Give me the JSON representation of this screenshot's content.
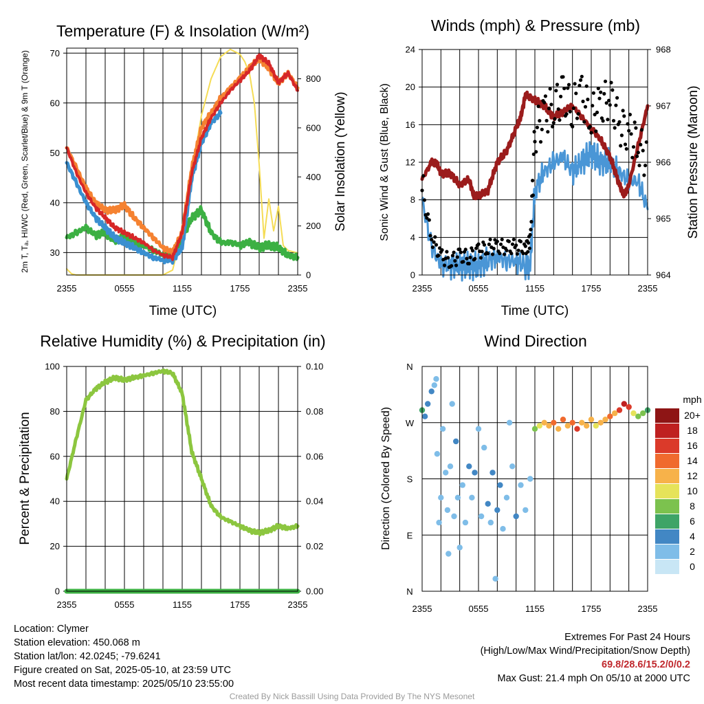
{
  "panels": {
    "temperature": {
      "title": "Temperature (F) & Insolation (W/m²)",
      "ylabel_left": "2m T, Tₐ, HI/WC (Red, Green, Scarlet/Blue) & 9m T (Orange)",
      "ylabel_right": "Solar Insolation (Yellow)",
      "xlabel": "Time (UTC)"
    },
    "winds": {
      "title": "Winds (mph) & Pressure (mb)",
      "ylabel_left": "Sonic Wind & Gust (Blue, Black)",
      "ylabel_right": "Station Pressure (Maroon)",
      "xlabel": "Time (UTC)"
    },
    "humidity": {
      "title": "Relative Humidity (%) & Precipitation (in)",
      "ylabel_left": "Percent & Precipitation"
    },
    "direction": {
      "title": "Wind Direction",
      "ylabel_left": "Direction (Colored By Speed)",
      "colorbar_unit": "mph",
      "colorbar_labels": [
        "20+",
        "18",
        "16",
        "14",
        "12",
        "10",
        "8",
        "6",
        "4",
        "2",
        "0"
      ]
    }
  },
  "info": {
    "location": "Location: Clymer",
    "elevation": "Station elevation: 450.068 m",
    "latlon": "Station lat/lon: 42.0245; -79.6241",
    "created": "Figure created on Sat, 2025-05-10, at 23:59 UTC",
    "recent": "Most recent data timestamp: 2025/05/10 23:55:00",
    "extremes_title": "Extremes For Past 24 Hours",
    "extremes_fields": "(High/Low/Max Wind/Precipitation/Snow Depth)",
    "extremes_values": "69.8/28.6/15.2/0/0.2",
    "max_gust": "Max Gust: 21.4 mph On 05/10 at 2000 UTC"
  },
  "credit": "Created By Nick Bassill Using Data Provided By The NYS Mesonet",
  "colors": {
    "temp": "#d62728",
    "temp9m": "#f58231",
    "dewpoint": "#3cb043",
    "heatindex_wc": "#c0282d",
    "windchill_blue": "#3a8fd0",
    "insolation": "#f5dc55",
    "wind": "#4a96d6",
    "gust": "#000000",
    "pressure": "#9b1c1c",
    "rh": "#8cc63f",
    "precip": "#3cb043"
  },
  "chart_data": [
    {
      "type": "line",
      "title": "Temperature (F) & Insolation (W/m²)",
      "xlabel": "Time (UTC)",
      "ylabel": "2m T, Tₐ, HI/WC (Red, Green, Scarlet/Blue) & 9m T (Orange)",
      "ylabel_right": "Solar Insolation (Yellow)",
      "x_ticks": [
        "2355",
        "0555",
        "1155",
        "1755",
        "2355"
      ],
      "x_hours": [
        0,
        2,
        4,
        6,
        8,
        10,
        12,
        14,
        16,
        18,
        20,
        22,
        24
      ],
      "ylim": [
        25.5,
        71
      ],
      "y_ticks": [
        30,
        40,
        50,
        60,
        70
      ],
      "ylim_right": [
        0,
        925
      ],
      "y_ticks_right": [
        0,
        200,
        400,
        600,
        800
      ],
      "series": [
        {
          "name": "2m T",
          "axis": "left",
          "color": "#d62728",
          "x": [
            0,
            1,
            2,
            3,
            4,
            5,
            6,
            7,
            8,
            9,
            10,
            11,
            12,
            13,
            14,
            15,
            16,
            17,
            18,
            19,
            20,
            21,
            22,
            23,
            24
          ],
          "values": [
            51,
            46,
            42,
            39,
            37,
            35,
            34,
            33,
            32,
            30.5,
            29.5,
            29,
            34,
            46,
            53,
            57,
            60,
            62.5,
            64.5,
            66.5,
            69.5,
            68,
            64,
            66,
            62.5
          ]
        },
        {
          "name": "9m T",
          "axis": "left",
          "color": "#f58231",
          "x": [
            0,
            1,
            2,
            3,
            4,
            5,
            6,
            7,
            8,
            9,
            10,
            11,
            12,
            13,
            14,
            15,
            16,
            17,
            18,
            19,
            20,
            21,
            22,
            23,
            24
          ],
          "values": [
            51,
            47,
            43,
            40,
            38.5,
            38.5,
            39.5,
            37,
            35,
            33,
            31,
            30,
            34,
            47,
            55,
            58,
            61,
            63,
            65,
            67,
            69,
            67,
            64,
            66,
            63
          ]
        },
        {
          "name": "Tₐ",
          "axis": "left",
          "color": "#3cb043",
          "x": [
            0,
            1,
            2,
            3,
            4,
            5,
            6,
            7,
            8,
            9,
            10,
            11,
            12,
            13,
            14,
            15,
            16,
            17,
            18,
            19,
            20,
            21,
            22,
            23,
            24
          ],
          "values": [
            33,
            34,
            35,
            33.5,
            34,
            32.5,
            33,
            32,
            31.5,
            30.5,
            29.5,
            29,
            33,
            37,
            38.5,
            34,
            32,
            32,
            31.5,
            32,
            31,
            31.5,
            31,
            29.5,
            29
          ]
        },
        {
          "name": "HI/WC",
          "axis": "left",
          "color": "#3a8fd0",
          "x": [
            0,
            1,
            2,
            3,
            4,
            5,
            6,
            7,
            8,
            9,
            10,
            11,
            12,
            13,
            14,
            15,
            16
          ],
          "values": [
            48,
            44,
            40,
            37,
            35,
            33,
            32,
            31,
            30,
            29,
            28.5,
            28.5,
            31,
            45,
            52,
            56,
            58
          ]
        },
        {
          "name": "Solar Insolation",
          "axis": "right",
          "color": "#f5dc55",
          "x": [
            0,
            0.5,
            1,
            2,
            4,
            6,
            8,
            10,
            11,
            12,
            13,
            14,
            15,
            16,
            17,
            18,
            18.5,
            19,
            19.5,
            20,
            20.5,
            21,
            21.5,
            22,
            22.5,
            23,
            24
          ],
          "values": [
            25,
            5,
            0,
            0,
            0,
            0,
            0,
            0,
            20,
            170,
            420,
            650,
            800,
            890,
            920,
            900,
            870,
            820,
            700,
            450,
            150,
            310,
            180,
            280,
            120,
            100,
            90
          ]
        }
      ]
    },
    {
      "type": "line",
      "title": "Winds (mph) & Pressure (mb)",
      "xlabel": "Time (UTC)",
      "ylabel": "Sonic Wind & Gust (Blue, Black)",
      "ylabel_right": "Station Pressure (Maroon)",
      "x_ticks": [
        "2355",
        "0555",
        "1155",
        "1755",
        "2355"
      ],
      "ylim": [
        0,
        24
      ],
      "y_ticks": [
        0,
        4,
        8,
        12,
        16,
        20,
        24
      ],
      "ylim_right": [
        964,
        968
      ],
      "y_ticks_right": [
        964,
        965,
        966,
        967,
        968
      ],
      "series": [
        {
          "name": "Sonic Wind",
          "axis": "left",
          "color": "#4a96d6",
          "x": [
            0,
            1,
            2,
            3,
            4,
            5,
            6,
            7,
            8,
            9,
            10,
            11,
            11.5,
            12,
            13,
            14,
            15,
            16,
            17,
            18,
            19,
            20,
            21,
            22,
            23,
            24
          ],
          "values": [
            8,
            3,
            1,
            1,
            1,
            1,
            1,
            1.5,
            2,
            1.5,
            1.5,
            1,
            1,
            9,
            11,
            12,
            12.5,
            11,
            12,
            13,
            12,
            12,
            11,
            10,
            10,
            7
          ]
        },
        {
          "name": "Gust",
          "axis": "left",
          "color": "#000000",
          "x": [
            0,
            1,
            2,
            3,
            4,
            5,
            6,
            7,
            8,
            9,
            10,
            11,
            11.5,
            12,
            13,
            14,
            15,
            16,
            17,
            18,
            19,
            20,
            21,
            22,
            23,
            24
          ],
          "values": [
            9,
            4,
            2,
            1.5,
            2,
            2,
            2.5,
            3,
            3,
            3,
            3,
            3,
            3.5,
            15,
            17,
            18,
            19,
            18,
            19,
            17,
            18,
            19,
            16,
            15,
            14,
            12
          ]
        },
        {
          "name": "Station Pressure",
          "axis": "right",
          "color": "#9b1c1c",
          "x": [
            0,
            1,
            1.5,
            2,
            3,
            4,
            5,
            5.5,
            6,
            7,
            8,
            9,
            10,
            10.5,
            11,
            12,
            13,
            14,
            15,
            16,
            17,
            18,
            19,
            20,
            21,
            21.5,
            22,
            23,
            24
          ],
          "values": [
            965.7,
            966,
            966,
            965.8,
            965.8,
            965.6,
            965.7,
            965.4,
            965.4,
            965.5,
            966,
            966.2,
            966.6,
            966.8,
            967.2,
            967.1,
            967.0,
            966.8,
            966.9,
            967,
            966.8,
            966.6,
            966.4,
            966.1,
            965.6,
            965.4,
            965.6,
            966.3,
            967
          ]
        }
      ]
    },
    {
      "type": "line",
      "title": "Relative Humidity (%) & Precipitation (in)",
      "ylabel": "Percent & Precipitation",
      "x_ticks": [
        "2355",
        "0555",
        "1155",
        "1755",
        "2355"
      ],
      "ylim": [
        0,
        100
      ],
      "y_ticks": [
        0,
        20,
        40,
        60,
        80,
        100
      ],
      "ylim_right": [
        0,
        0.1
      ],
      "y_ticks_right": [
        "0.00",
        "0.02",
        "0.04",
        "0.06",
        "0.08",
        "0.10"
      ],
      "series": [
        {
          "name": "RH",
          "axis": "left",
          "color": "#8cc63f",
          "x": [
            0,
            1,
            2,
            3,
            4,
            5,
            6,
            7,
            8,
            9,
            10,
            11,
            12,
            13,
            14,
            15,
            16,
            17,
            18,
            19,
            20,
            21,
            22,
            23,
            24
          ],
          "values": [
            50,
            68,
            85,
            90,
            93,
            95,
            94,
            95,
            96,
            97,
            98,
            97,
            88,
            62,
            50,
            38,
            33,
            31,
            29,
            27,
            26,
            27,
            29,
            28,
            29
          ]
        },
        {
          "name": "Precipitation",
          "axis": "right",
          "color": "#3cb043",
          "x": [
            0,
            24
          ],
          "values": [
            0,
            0
          ]
        }
      ]
    },
    {
      "type": "scatter",
      "title": "Wind Direction",
      "ylabel": "Direction (Colored By Speed)",
      "x_ticks": [
        "2355",
        "0555",
        "1155",
        "1755",
        "2355"
      ],
      "y_ticks": [
        "N",
        "E",
        "S",
        "W",
        "N"
      ],
      "ylim": [
        0,
        360
      ],
      "colorbar": {
        "unit": "mph",
        "levels": [
          "0",
          "2",
          "4",
          "6",
          "8",
          "10",
          "12",
          "14",
          "16",
          "18",
          "20+"
        ],
        "colors": [
          "#c8e6f5",
          "#7fbde8",
          "#4287c4",
          "#3ea467",
          "#7cc24e",
          "#e6e35a",
          "#f7b24a",
          "#f06a2e",
          "#db3a2a",
          "#bf2020",
          "#8e1515"
        ]
      },
      "points": [
        [
          0,
          290,
          5
        ],
        [
          0.3,
          280,
          4
        ],
        [
          0.6,
          300,
          4
        ],
        [
          1,
          320,
          3
        ],
        [
          1.3,
          330,
          2
        ],
        [
          1.5,
          340,
          1
        ],
        [
          1.6,
          220,
          1
        ],
        [
          1.8,
          110,
          1
        ],
        [
          2,
          150,
          1
        ],
        [
          2.2,
          260,
          1
        ],
        [
          2.5,
          190,
          1
        ],
        [
          2.7,
          130,
          2
        ],
        [
          2.8,
          60,
          1
        ],
        [
          3,
          200,
          2
        ],
        [
          3.2,
          300,
          1
        ],
        [
          3.4,
          120,
          1
        ],
        [
          3.6,
          240,
          3
        ],
        [
          3.8,
          150,
          1
        ],
        [
          4,
          70,
          1
        ],
        [
          4.3,
          170,
          2
        ],
        [
          4.6,
          110,
          1
        ],
        [
          5,
          200,
          3
        ],
        [
          5.3,
          150,
          2
        ],
        [
          5.6,
          190,
          3
        ],
        [
          6,
          260,
          1
        ],
        [
          6.3,
          120,
          2
        ],
        [
          6.6,
          230,
          1
        ],
        [
          7,
          140,
          3
        ],
        [
          7.3,
          110,
          1
        ],
        [
          7.5,
          190,
          3
        ],
        [
          7.8,
          20,
          1
        ],
        [
          8,
          130,
          3
        ],
        [
          8.3,
          170,
          3
        ],
        [
          8.6,
          100,
          2
        ],
        [
          9,
          150,
          2
        ],
        [
          9.3,
          270,
          1
        ],
        [
          9.6,
          200,
          2
        ],
        [
          10,
          120,
          3
        ],
        [
          10.5,
          170,
          2
        ],
        [
          11,
          130,
          2
        ],
        [
          11.5,
          180,
          2
        ],
        [
          12,
          260,
          8
        ],
        [
          12.5,
          265,
          9
        ],
        [
          13,
          270,
          11
        ],
        [
          13.5,
          265,
          12
        ],
        [
          14,
          270,
          13
        ],
        [
          14.5,
          260,
          12
        ],
        [
          15,
          275,
          14
        ],
        [
          15.5,
          265,
          12
        ],
        [
          16,
          270,
          13
        ],
        [
          16.5,
          260,
          15
        ],
        [
          17,
          270,
          12
        ],
        [
          17.5,
          265,
          11
        ],
        [
          18,
          275,
          12
        ],
        [
          18.5,
          265,
          10
        ],
        [
          19,
          270,
          11
        ],
        [
          19.5,
          275,
          12
        ],
        [
          20,
          280,
          13
        ],
        [
          20.5,
          285,
          11
        ],
        [
          21,
          290,
          15
        ],
        [
          21.5,
          300,
          17
        ],
        [
          22,
          295,
          16
        ],
        [
          22.5,
          285,
          10
        ],
        [
          23,
          280,
          7
        ],
        [
          23.5,
          285,
          8
        ],
        [
          24,
          290,
          6
        ]
      ]
    }
  ]
}
